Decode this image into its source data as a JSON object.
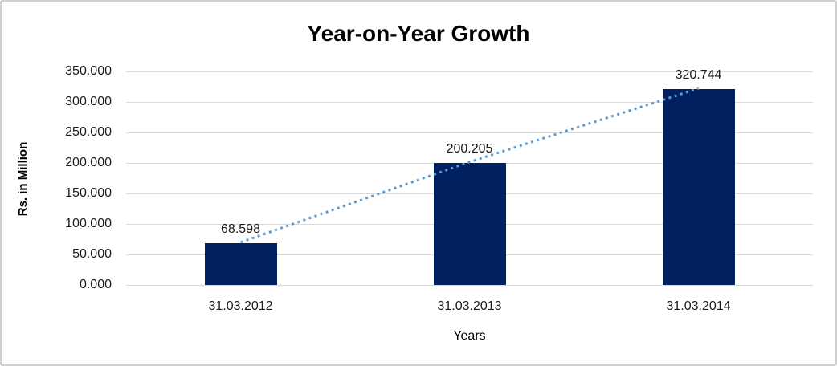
{
  "chart_data": {
    "type": "bar",
    "title": "Year-on-Year Growth",
    "xlabel": "Years",
    "ylabel": "Rs. in Million",
    "categories": [
      "31.03.2012",
      "31.03.2013",
      "31.03.2014"
    ],
    "values": [
      68.598,
      200.205,
      320.744
    ],
    "data_labels": [
      "68.598",
      "200.205",
      "320.744"
    ],
    "ylim": [
      0,
      350
    ],
    "ytick_step": 50,
    "ytick_labels": [
      "0.000",
      "50.000",
      "100.000",
      "150.000",
      "200.000",
      "250.000",
      "300.000",
      "350.000"
    ],
    "grid": true,
    "legend": "none",
    "colors": {
      "bar": "#002060",
      "trendline": "#5B9BD5",
      "gridline": "#D9D9D9",
      "text": "#1a1a1a",
      "frame_border": "#cfcfcf"
    },
    "trendline": {
      "style": "dotted",
      "through": "bar-tops"
    }
  }
}
